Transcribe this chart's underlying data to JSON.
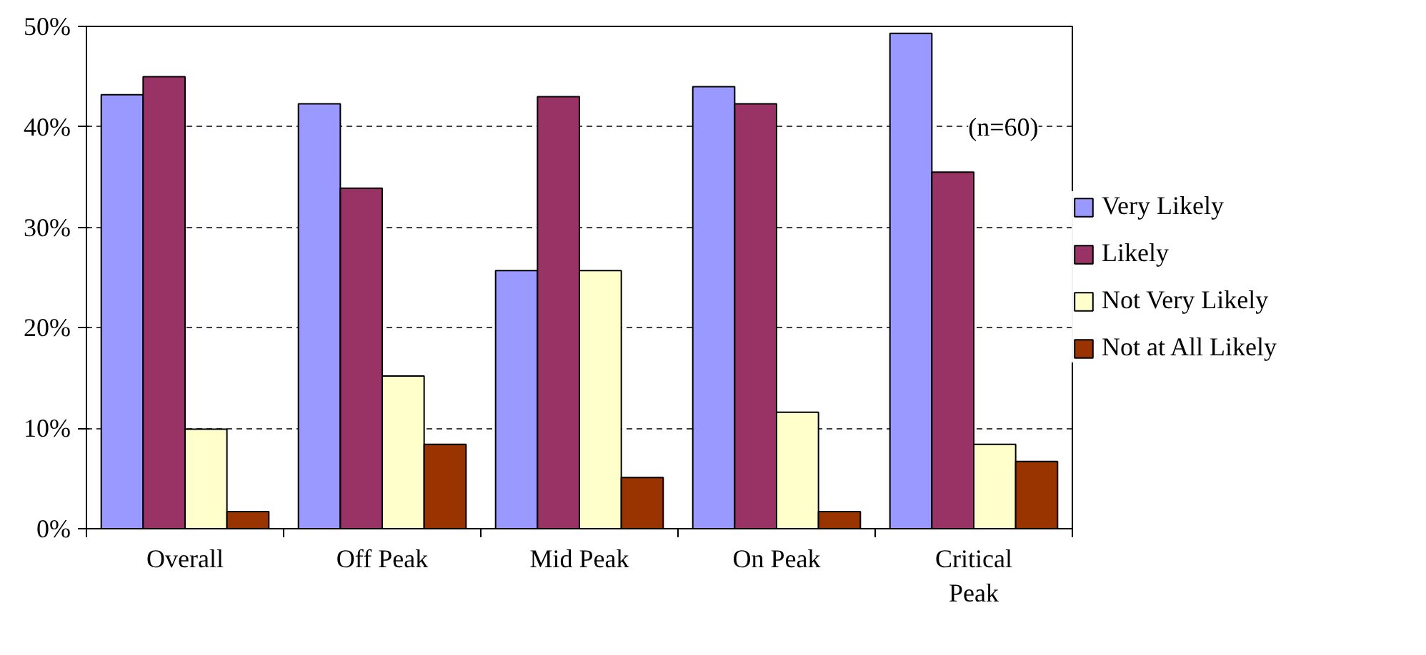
{
  "chart_data": {
    "type": "bar",
    "categories": [
      "Overall",
      "Off Peak",
      "Mid Peak",
      "On Peak",
      "Critical\nPeak"
    ],
    "series": [
      {
        "name": "Very Likely",
        "color": "#9999ff",
        "values": [
          43.2,
          42.3,
          25.7,
          44.0,
          49.3
        ]
      },
      {
        "name": "Likely",
        "color": "#993366",
        "values": [
          45.0,
          33.9,
          43.0,
          42.3,
          35.5
        ]
      },
      {
        "name": "Not Very Likely",
        "color": "#ffffcc",
        "values": [
          9.9,
          15.2,
          25.7,
          11.6,
          8.4
        ]
      },
      {
        "name": "Not at All Likely",
        "color": "#993300",
        "values": [
          1.7,
          8.4,
          5.1,
          1.7,
          6.7
        ]
      }
    ],
    "ylim": [
      0,
      50
    ],
    "yticks": [
      {
        "value": 0,
        "label": "0%"
      },
      {
        "value": 10,
        "label": "10%"
      },
      {
        "value": 20,
        "label": "20%"
      },
      {
        "value": 30,
        "label": "30%"
      },
      {
        "value": 40,
        "label": "40%"
      },
      {
        "value": 50,
        "label": "50%"
      }
    ],
    "grid": "y",
    "legend": "right",
    "annotations": [
      "(n=60)"
    ]
  }
}
